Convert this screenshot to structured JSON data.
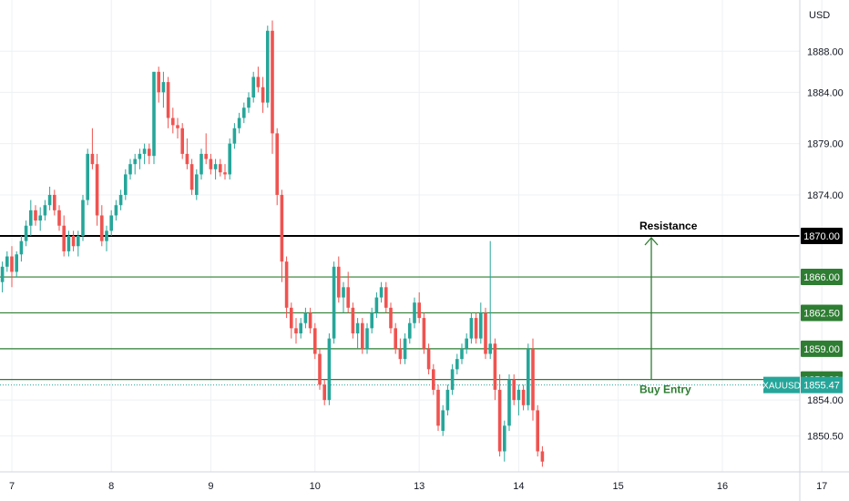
{
  "chart_data": {
    "type": "candlestick",
    "symbol": "XAUUSD",
    "currency": "USD",
    "last_price": "1855.47",
    "ylim": [
      1847.0,
      1893.0
    ],
    "y_ticks": [
      "1888.00",
      "1884.00",
      "1879.00",
      "1874.00",
      "1854.00",
      "1850.50"
    ],
    "x_ticks": [
      {
        "label": "7",
        "index": 2
      },
      {
        "label": "8",
        "index": 23
      },
      {
        "label": "9",
        "index": 44
      },
      {
        "label": "10",
        "index": 66
      },
      {
        "label": "13",
        "index": 88
      },
      {
        "label": "14",
        "index": 109
      },
      {
        "label": "15",
        "index": 130
      },
      {
        "label": "16",
        "index": 152
      },
      {
        "label": "17",
        "index": 173
      }
    ],
    "levels": [
      {
        "name": "Resistance",
        "value": 1870.0,
        "label": "1870.00",
        "color": "#000000",
        "badge_fill": "#000000",
        "badge_text": "#ffffff"
      },
      {
        "name": "",
        "value": 1866.0,
        "label": "1866.00",
        "color": "#2e7d32",
        "badge_fill": "#2e7d32",
        "badge_text": "#ffffff"
      },
      {
        "name": "",
        "value": 1862.5,
        "label": "1862.50",
        "color": "#2e7d32",
        "badge_fill": "#2e7d32",
        "badge_text": "#ffffff"
      },
      {
        "name": "",
        "value": 1859.0,
        "label": "1859.00",
        "color": "#2e7d32",
        "badge_fill": "#2e7d32",
        "badge_text": "#ffffff"
      },
      {
        "name": "",
        "value": 1856.0,
        "label": "1856.00",
        "color": "#2e7d32",
        "badge_fill": "#2e7d32",
        "badge_text": "#ffffff"
      }
    ],
    "annotations": {
      "resistance_label": "Resistance",
      "buy_entry_label": "Buy Entry",
      "arrow_from": 1856.0,
      "arrow_to": 1870.0,
      "arrow_bar_index": 137
    },
    "candles": [
      [
        1865.5,
        1867.5,
        1864.5,
        1867.0
      ],
      [
        1867.0,
        1868.5,
        1866.5,
        1868.0
      ],
      [
        1868.0,
        1869.0,
        1865.0,
        1866.5
      ],
      [
        1866.5,
        1868.5,
        1866.0,
        1868.2
      ],
      [
        1868.2,
        1870.0,
        1867.5,
        1869.5
      ],
      [
        1869.5,
        1871.5,
        1869.0,
        1871.0
      ],
      [
        1871.0,
        1873.5,
        1870.0,
        1872.5
      ],
      [
        1872.5,
        1873.0,
        1871.0,
        1871.5
      ],
      [
        1871.5,
        1872.8,
        1870.5,
        1872.0
      ],
      [
        1872.0,
        1873.5,
        1871.5,
        1873.0
      ],
      [
        1873.0,
        1874.8,
        1872.5,
        1874.0
      ],
      [
        1874.0,
        1874.5,
        1872.0,
        1872.5
      ],
      [
        1872.5,
        1873.0,
        1870.5,
        1871.0
      ],
      [
        1871.0,
        1872.0,
        1868.0,
        1868.5
      ],
      [
        1868.5,
        1870.5,
        1868.0,
        1870.0
      ],
      [
        1870.0,
        1870.5,
        1868.5,
        1869.0
      ],
      [
        1869.0,
        1870.5,
        1868.0,
        1870.0
      ],
      [
        1870.0,
        1874.0,
        1869.5,
        1873.5
      ],
      [
        1873.5,
        1878.5,
        1873.0,
        1878.0
      ],
      [
        1878.0,
        1880.5,
        1876.5,
        1877.0
      ],
      [
        1877.0,
        1878.0,
        1871.0,
        1872.0
      ],
      [
        1872.0,
        1873.0,
        1869.0,
        1869.5
      ],
      [
        1869.5,
        1871.0,
        1868.5,
        1870.5
      ],
      [
        1870.5,
        1872.5,
        1870.0,
        1872.0
      ],
      [
        1872.0,
        1873.5,
        1871.5,
        1873.0
      ],
      [
        1873.0,
        1874.5,
        1872.5,
        1874.0
      ],
      [
        1874.0,
        1876.5,
        1873.5,
        1876.0
      ],
      [
        1876.0,
        1877.5,
        1875.5,
        1877.0
      ],
      [
        1877.0,
        1878.0,
        1876.0,
        1877.5
      ],
      [
        1877.5,
        1878.5,
        1876.5,
        1878.0
      ],
      [
        1878.0,
        1879.0,
        1877.0,
        1878.5
      ],
      [
        1878.5,
        1879.0,
        1877.0,
        1877.8
      ],
      [
        1877.8,
        1886.0,
        1877.0,
        1886.0
      ],
      [
        1886.0,
        1886.5,
        1883.0,
        1884.0
      ],
      [
        1884.0,
        1886.0,
        1882.5,
        1885.0
      ],
      [
        1885.0,
        1885.5,
        1880.5,
        1881.5
      ],
      [
        1881.5,
        1882.5,
        1880.0,
        1880.8
      ],
      [
        1880.8,
        1881.5,
        1879.5,
        1880.5
      ],
      [
        1880.5,
        1881.0,
        1877.5,
        1878.0
      ],
      [
        1878.0,
        1879.5,
        1876.5,
        1877.0
      ],
      [
        1877.0,
        1877.5,
        1874.0,
        1874.5
      ],
      [
        1874.0,
        1876.5,
        1873.5,
        1876.0
      ],
      [
        1876.0,
        1878.5,
        1875.5,
        1878.0
      ],
      [
        1878.0,
        1880.0,
        1877.0,
        1877.5
      ],
      [
        1877.5,
        1878.0,
        1876.0,
        1876.5
      ],
      [
        1876.5,
        1877.5,
        1875.5,
        1877.0
      ],
      [
        1877.0,
        1877.5,
        1875.8,
        1876.2
      ],
      [
        1876.2,
        1877.0,
        1875.5,
        1876.0
      ],
      [
        1876.0,
        1879.5,
        1875.5,
        1879.0
      ],
      [
        1879.0,
        1881.0,
        1878.5,
        1880.5
      ],
      [
        1880.5,
        1882.0,
        1880.0,
        1881.5
      ],
      [
        1881.5,
        1883.0,
        1881.0,
        1882.5
      ],
      [
        1882.5,
        1884.0,
        1882.0,
        1883.5
      ],
      [
        1883.5,
        1886.0,
        1883.0,
        1885.5
      ],
      [
        1885.5,
        1886.5,
        1884.0,
        1884.5
      ],
      [
        1884.5,
        1885.5,
        1882.0,
        1883.0
      ],
      [
        1883.0,
        1890.5,
        1882.5,
        1890.0
      ],
      [
        1890.0,
        1891.0,
        1878.0,
        1880.0
      ],
      [
        1880.0,
        1880.5,
        1873.0,
        1874.0
      ],
      [
        1874.0,
        1874.5,
        1865.5,
        1867.5
      ],
      [
        1867.5,
        1868.0,
        1862.0,
        1863.0
      ],
      [
        1863.0,
        1863.5,
        1860.0,
        1861.0
      ],
      [
        1861.0,
        1862.0,
        1859.5,
        1860.5
      ],
      [
        1860.5,
        1862.0,
        1860.0,
        1861.5
      ],
      [
        1861.5,
        1863.0,
        1861.0,
        1862.5
      ],
      [
        1862.5,
        1863.0,
        1860.5,
        1861.0
      ],
      [
        1861.0,
        1861.5,
        1858.0,
        1858.5
      ],
      [
        1858.5,
        1859.0,
        1855.0,
        1855.5
      ],
      [
        1855.5,
        1856.0,
        1853.5,
        1854.0
      ],
      [
        1854.0,
        1860.5,
        1853.5,
        1860.0
      ],
      [
        1860.0,
        1867.5,
        1859.5,
        1867.0
      ],
      [
        1867.0,
        1868.0,
        1863.5,
        1864.0
      ],
      [
        1864.0,
        1865.5,
        1862.5,
        1865.0
      ],
      [
        1865.0,
        1866.5,
        1862.5,
        1863.0
      ],
      [
        1863.0,
        1863.5,
        1860.0,
        1860.5
      ],
      [
        1860.5,
        1862.0,
        1859.0,
        1861.5
      ],
      [
        1861.5,
        1862.0,
        1858.5,
        1859.0
      ],
      [
        1859.0,
        1861.5,
        1858.5,
        1861.0
      ],
      [
        1861.0,
        1863.0,
        1860.5,
        1862.5
      ],
      [
        1862.5,
        1864.5,
        1862.0,
        1864.0
      ],
      [
        1864.0,
        1865.5,
        1863.5,
        1865.0
      ],
      [
        1865.0,
        1865.5,
        1862.5,
        1863.0
      ],
      [
        1863.0,
        1863.5,
        1860.5,
        1861.0
      ],
      [
        1861.0,
        1861.5,
        1858.5,
        1859.0
      ],
      [
        1859.0,
        1860.0,
        1857.5,
        1858.0
      ],
      [
        1858.0,
        1860.5,
        1857.5,
        1860.0
      ],
      [
        1860.0,
        1862.0,
        1859.5,
        1861.5
      ],
      [
        1861.5,
        1864.0,
        1861.0,
        1863.5
      ],
      [
        1863.5,
        1864.5,
        1861.5,
        1862.0
      ],
      [
        1862.0,
        1862.5,
        1858.5,
        1859.0
      ],
      [
        1859.0,
        1859.5,
        1856.5,
        1857.0
      ],
      [
        1857.0,
        1857.5,
        1854.5,
        1855.0
      ],
      [
        1855.0,
        1855.5,
        1851.0,
        1851.5
      ],
      [
        1851.0,
        1853.5,
        1850.5,
        1853.0
      ],
      [
        1853.0,
        1855.5,
        1852.5,
        1855.0
      ],
      [
        1855.0,
        1857.5,
        1854.5,
        1857.0
      ],
      [
        1857.0,
        1858.5,
        1856.5,
        1858.0
      ],
      [
        1858.0,
        1859.5,
        1857.5,
        1859.0
      ],
      [
        1859.0,
        1860.5,
        1858.5,
        1860.0
      ],
      [
        1860.0,
        1862.5,
        1859.5,
        1862.0
      ],
      [
        1862.0,
        1862.5,
        1859.5,
        1860.0
      ],
      [
        1860.0,
        1863.5,
        1859.5,
        1862.5
      ],
      [
        1862.5,
        1863.0,
        1858.0,
        1858.5
      ],
      [
        1858.5,
        1869.5,
        1858.0,
        1859.5
      ],
      [
        1859.5,
        1860.0,
        1854.0,
        1855.0
      ],
      [
        1855.0,
        1856.5,
        1848.5,
        1849.0
      ],
      [
        1849.0,
        1852.0,
        1848.0,
        1851.5
      ],
      [
        1851.5,
        1856.5,
        1851.0,
        1856.0
      ],
      [
        1856.0,
        1856.5,
        1853.5,
        1854.0
      ],
      [
        1854.0,
        1855.5,
        1852.5,
        1855.0
      ],
      [
        1855.0,
        1855.5,
        1853.0,
        1853.5
      ],
      [
        1853.5,
        1859.5,
        1853.0,
        1859.0
      ],
      [
        1859.0,
        1860.0,
        1852.0,
        1853.0
      ],
      [
        1853.0,
        1853.5,
        1848.5,
        1849.0
      ],
      [
        1849.0,
        1849.5,
        1847.5,
        1848.0
      ]
    ]
  }
}
